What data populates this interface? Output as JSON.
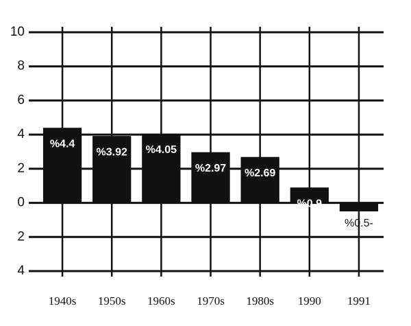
{
  "chart_data": {
    "type": "bar",
    "categories": [
      "1940s",
      "1950s",
      "1960s",
      "1970s",
      "1980s",
      "1990",
      "1991"
    ],
    "values": [
      4.4,
      3.92,
      4.05,
      2.97,
      2.69,
      0.9,
      -0.5
    ],
    "value_labels": [
      "%4.4",
      "%3.92",
      "%4.05",
      "%2.97",
      "%2.69",
      "%0.9",
      "%0.5-"
    ],
    "color": "#111111",
    "ylim": [
      -4,
      10
    ],
    "yticks": [
      {
        "value": -4,
        "label": "4"
      },
      {
        "value": -2,
        "label": "2"
      },
      0,
      2,
      4,
      6,
      8,
      10
    ],
    "grid": true
  }
}
